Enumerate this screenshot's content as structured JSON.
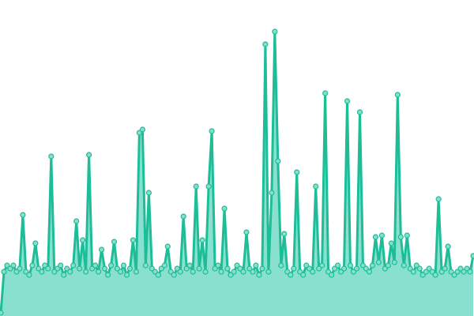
{
  "chart_data": {
    "type": "area",
    "title": "",
    "xlabel": "",
    "ylabel": "",
    "xlim": [
      0,
      150
    ],
    "ylim": [
      0,
      100
    ],
    "grid": false,
    "axes_visible": false,
    "markers": true,
    "colors": {
      "line": "#1dbd98",
      "fill": "#8ae0cf",
      "marker_fill": "#86dfcb",
      "marker_stroke": "#1dbd98"
    },
    "values": [
      1,
      14,
      16,
      15,
      16,
      14,
      15,
      32,
      14,
      13,
      16,
      23,
      15,
      14,
      16,
      15,
      50.5,
      14,
      15,
      16,
      13,
      15,
      14,
      16,
      30,
      15,
      24,
      14,
      51,
      15,
      16,
      14,
      21,
      15,
      13,
      16,
      23.5,
      15,
      14,
      16,
      13,
      15,
      24,
      14,
      58,
      59,
      16,
      39,
      15,
      14,
      13,
      15,
      16,
      22,
      14,
      13,
      15,
      14,
      31.5,
      15,
      16,
      14,
      41,
      15,
      24,
      14,
      41,
      58.5,
      15,
      16,
      14,
      34,
      15,
      13,
      14,
      16,
      15,
      14,
      26.5,
      15,
      14,
      16,
      13,
      15,
      86,
      14,
      39,
      90,
      49,
      16,
      26,
      14,
      13,
      15,
      45.5,
      14,
      13,
      16,
      15,
      14,
      41,
      15,
      16,
      70.5,
      14,
      13,
      15,
      16,
      14,
      15,
      68,
      16,
      14,
      15,
      64.5,
      16,
      15,
      14,
      16,
      25,
      17,
      25.5,
      15,
      16,
      23,
      17,
      70,
      25,
      16,
      25.5,
      15,
      14,
      16,
      15,
      13,
      14,
      15,
      14,
      13,
      37,
      14,
      15,
      22,
      14,
      13,
      14,
      15,
      14,
      15,
      14,
      19
    ]
  }
}
